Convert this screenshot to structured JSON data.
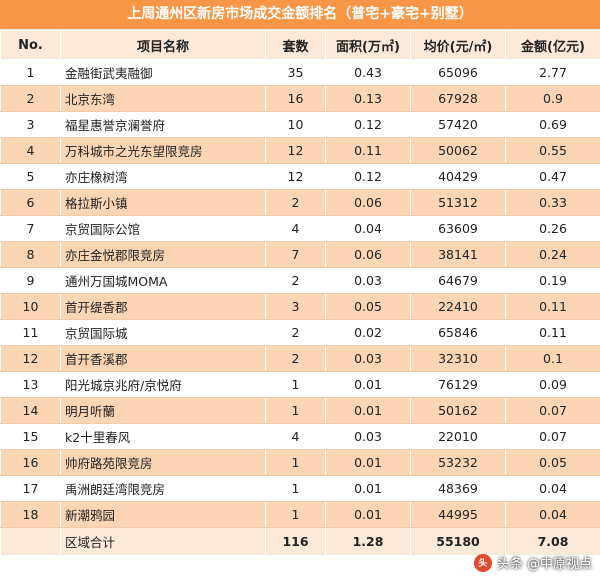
{
  "title": "上周通州区新房市场成交金额排名（普宅+豪宅+别墅）",
  "headers": [
    "No.",
    "项目名称",
    "套数",
    "面积(万㎡)",
    "均价(元/㎡)",
    "金额(亿元)"
  ],
  "rows": [
    {
      "no": "1",
      "name": "金融街武夷融御",
      "units": "35",
      "area": "0.43",
      "price": "65096",
      "amount": "2.77"
    },
    {
      "no": "2",
      "name": "北京东湾",
      "units": "16",
      "area": "0.13",
      "price": "67928",
      "amount": "0.9"
    },
    {
      "no": "3",
      "name": "福星惠誉京澜誉府",
      "units": "10",
      "area": "0.12",
      "price": "57420",
      "amount": "0.69"
    },
    {
      "no": "4",
      "name": "万科城市之光东望限竞房",
      "units": "12",
      "area": "0.11",
      "price": "50062",
      "amount": "0.55"
    },
    {
      "no": "5",
      "name": "亦庄橡树湾",
      "units": "12",
      "area": "0.12",
      "price": "40429",
      "amount": "0.47"
    },
    {
      "no": "6",
      "name": "格拉斯小镇",
      "units": "2",
      "area": "0.06",
      "price": "51312",
      "amount": "0.33"
    },
    {
      "no": "7",
      "name": "京贸国际公馆",
      "units": "4",
      "area": "0.04",
      "price": "63609",
      "amount": "0.26"
    },
    {
      "no": "8",
      "name": "亦庄金悦郡限竞房",
      "units": "7",
      "area": "0.06",
      "price": "38141",
      "amount": "0.24"
    },
    {
      "no": "9",
      "name": "通州万国城MOMA",
      "units": "2",
      "area": "0.03",
      "price": "64679",
      "amount": "0.19"
    },
    {
      "no": "10",
      "name": "首开缇香郡",
      "units": "3",
      "area": "0.05",
      "price": "22410",
      "amount": "0.11"
    },
    {
      "no": "11",
      "name": "京贸国际城",
      "units": "2",
      "area": "0.02",
      "price": "65846",
      "amount": "0.11"
    },
    {
      "no": "12",
      "name": "首开香溪郡",
      "units": "2",
      "area": "0.03",
      "price": "32310",
      "amount": "0.1"
    },
    {
      "no": "13",
      "name": "阳光城京兆府/京悦府",
      "units": "1",
      "area": "0.01",
      "price": "76129",
      "amount": "0.09"
    },
    {
      "no": "14",
      "name": "明月听蘭",
      "units": "1",
      "area": "0.01",
      "price": "50162",
      "amount": "0.07"
    },
    {
      "no": "15",
      "name": "k2十里春风",
      "units": "4",
      "area": "0.03",
      "price": "22010",
      "amount": "0.07"
    },
    {
      "no": "16",
      "name": "帅府路苑限竞房",
      "units": "1",
      "area": "0.01",
      "price": "53232",
      "amount": "0.05"
    },
    {
      "no": "17",
      "name": "禹洲朗廷湾限竞房",
      "units": "1",
      "area": "0.01",
      "price": "48369",
      "amount": "0.04"
    },
    {
      "no": "18",
      "name": "新潮鸦园",
      "units": "1",
      "area": "0.01",
      "price": "44995",
      "amount": "0.04"
    }
  ],
  "total": {
    "label": "区域合计",
    "units": "116",
    "area": "1.28",
    "price": "55180",
    "amount": "7.08"
  },
  "watermark": {
    "text": "头条 @中原视点"
  },
  "colors": {
    "title_bg": "#f79646",
    "header_bg": "#fde9d9",
    "stripe_bg": "#fcd5b5"
  }
}
